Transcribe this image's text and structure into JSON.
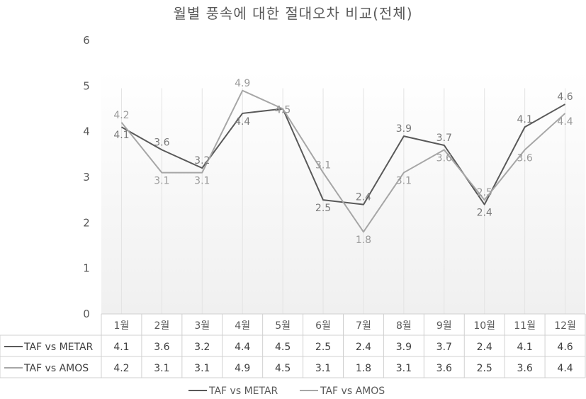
{
  "chart_data": {
    "type": "line",
    "title": "월별 풍속에 대한 절대오차 비교(전체)",
    "categories": [
      "1월",
      "2월",
      "3월",
      "4월",
      "5월",
      "6월",
      "7월",
      "8월",
      "9월",
      "10월",
      "11월",
      "12월"
    ],
    "series": [
      {
        "name": "TAF vs METAR",
        "values": [
          4.1,
          3.6,
          3.2,
          4.4,
          4.5,
          2.5,
          2.4,
          3.9,
          3.7,
          2.4,
          4.1,
          4.6
        ]
      },
      {
        "name": "TAF vs AMOS",
        "values": [
          4.2,
          3.1,
          3.1,
          4.9,
          4.5,
          3.1,
          1.8,
          3.1,
          3.6,
          2.5,
          3.6,
          4.4
        ]
      }
    ],
    "ylim": [
      0,
      6
    ],
    "yticks": [
      0,
      1,
      2,
      3,
      4,
      5,
      6
    ],
    "grid": "vertical",
    "data_table": true,
    "legend_position": "bottom",
    "colors": {
      "TAF vs METAR": "#595959",
      "TAF vs AMOS": "#a6a6a6",
      "axis": "#d9d9d9",
      "text": "#595959"
    }
  }
}
